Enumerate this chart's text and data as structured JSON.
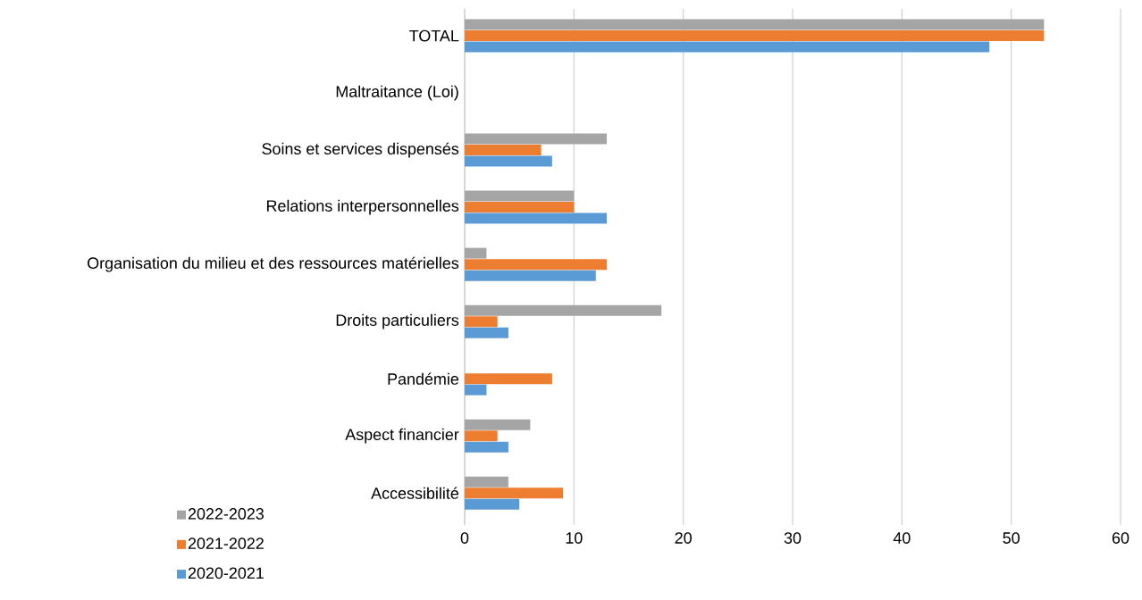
{
  "chart_data": {
    "type": "bar",
    "orientation": "horizontal",
    "categories": [
      "TOTAL",
      "Maltraitance (Loi)",
      "Soins et services dispensés",
      "Relations interpersonnelles",
      "Organisation du milieu et des ressources matérielles",
      "Droits particuliers",
      "Pandémie",
      "Aspect financier",
      "Accessibilité"
    ],
    "series": [
      {
        "name": "2022-2023",
        "color": "#a5a5a5",
        "values": [
          53,
          null,
          13,
          10,
          2,
          18,
          null,
          6,
          4
        ]
      },
      {
        "name": "2021-2022",
        "color": "#ed7d31",
        "values": [
          53,
          null,
          7,
          10,
          13,
          3,
          8,
          3,
          9
        ]
      },
      {
        "name": "2020-2021",
        "color": "#5b9bd5",
        "values": [
          48,
          null,
          8,
          13,
          12,
          4,
          2,
          4,
          5
        ]
      }
    ],
    "xlim": [
      0,
      60
    ],
    "xticks": [
      0,
      10,
      20,
      30,
      40,
      50,
      60
    ],
    "grid": "x",
    "legend": "bottom left"
  }
}
